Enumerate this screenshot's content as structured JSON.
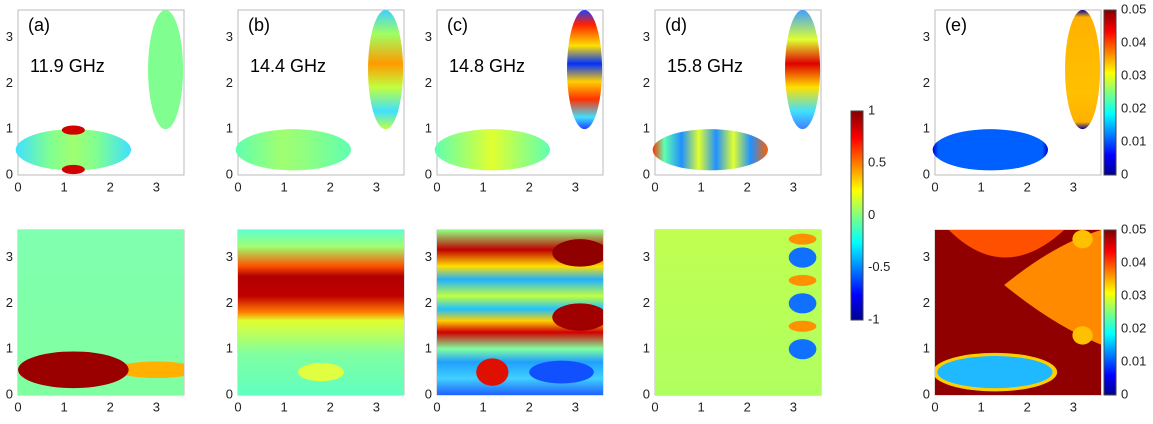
{
  "panels": [
    {
      "label": "(a)",
      "frequency": "11.9 GHz"
    },
    {
      "label": "(b)",
      "frequency": "14.4 GHz"
    },
    {
      "label": "(c)",
      "frequency": "14.8 GHz"
    },
    {
      "label": "(d)",
      "frequency": "15.8 GHz"
    },
    {
      "label": "(e)"
    }
  ],
  "axis_ticks": [
    "0",
    "1",
    "2",
    "3"
  ],
  "colorbar_main": {
    "ticks": [
      "1",
      "0.5",
      "0",
      "-0.5",
      "-1"
    ]
  },
  "colorbar_e": {
    "ticks": [
      "0.05",
      "0.04",
      "0.03",
      "0.02",
      "0.01",
      "0"
    ]
  }
}
